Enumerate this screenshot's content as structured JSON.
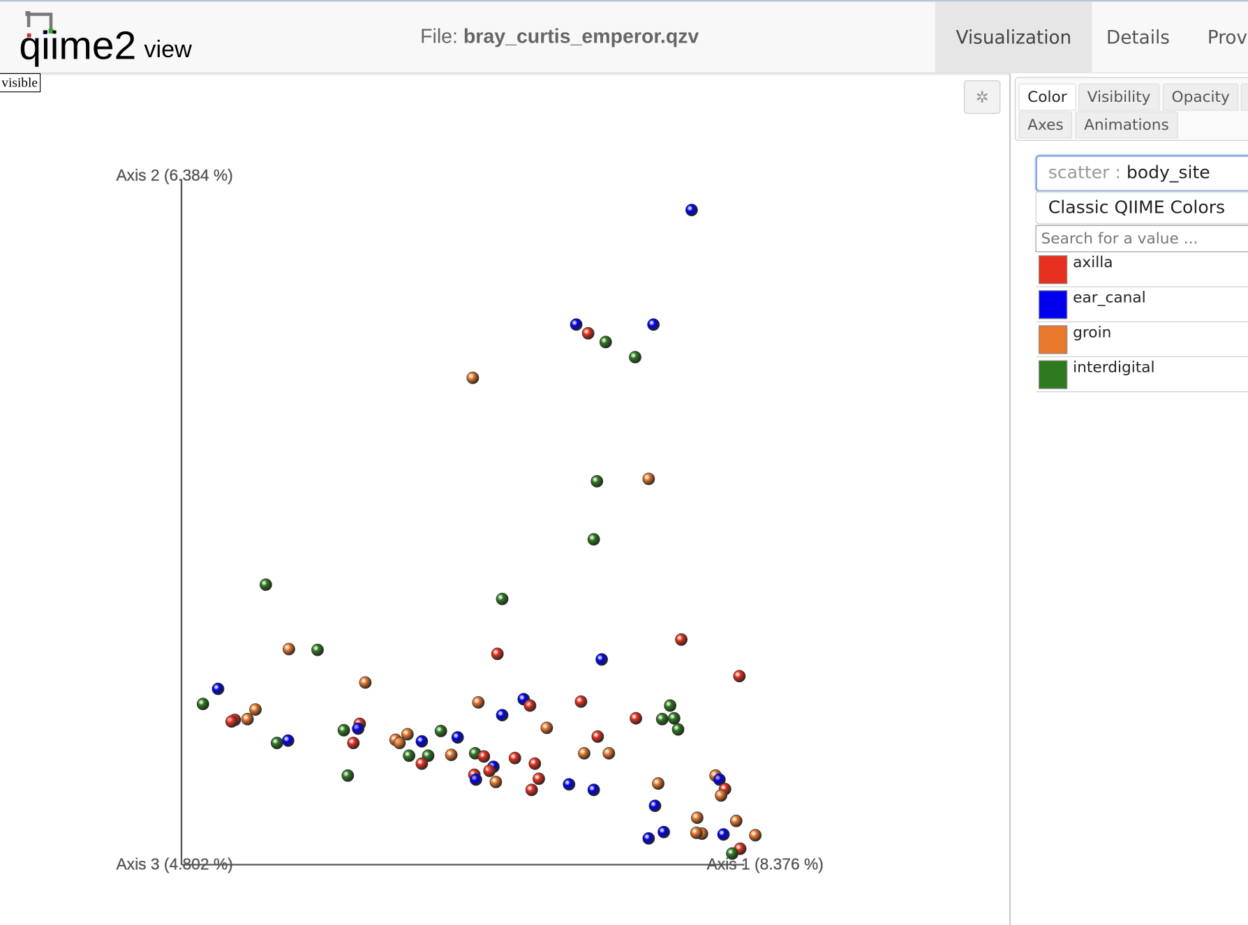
{
  "header": {
    "logo": "qiime2",
    "logo_suffix": "view",
    "file_label": "File:",
    "file_name": "bray_curtis_emperor.qzv",
    "tabs": [
      "Visualization",
      "Details",
      "Prov"
    ]
  },
  "plot": {
    "hidden_label": "visible",
    "axes": [
      "Axis 2 (6.384 %)",
      "Axis 3 (4.802 %)",
      "Axis 1 (8.376 %)"
    ]
  },
  "panel": {
    "tabs": [
      "Color",
      "Visibility",
      "Opacity",
      "Axes",
      "Animations"
    ],
    "selector_prefix": "scatter :",
    "selector_value": "body_site",
    "colormap": "Classic QIIME Colors",
    "search_placeholder": "Search for a value ...",
    "legend": [
      {
        "name": "axilla",
        "color": "#e8301e"
      },
      {
        "name": "ear_canal",
        "color": "#0000ee"
      },
      {
        "name": "groin",
        "color": "#e8782a"
      },
      {
        "name": "interdigital",
        "color": "#2e7a1e"
      }
    ]
  }
}
